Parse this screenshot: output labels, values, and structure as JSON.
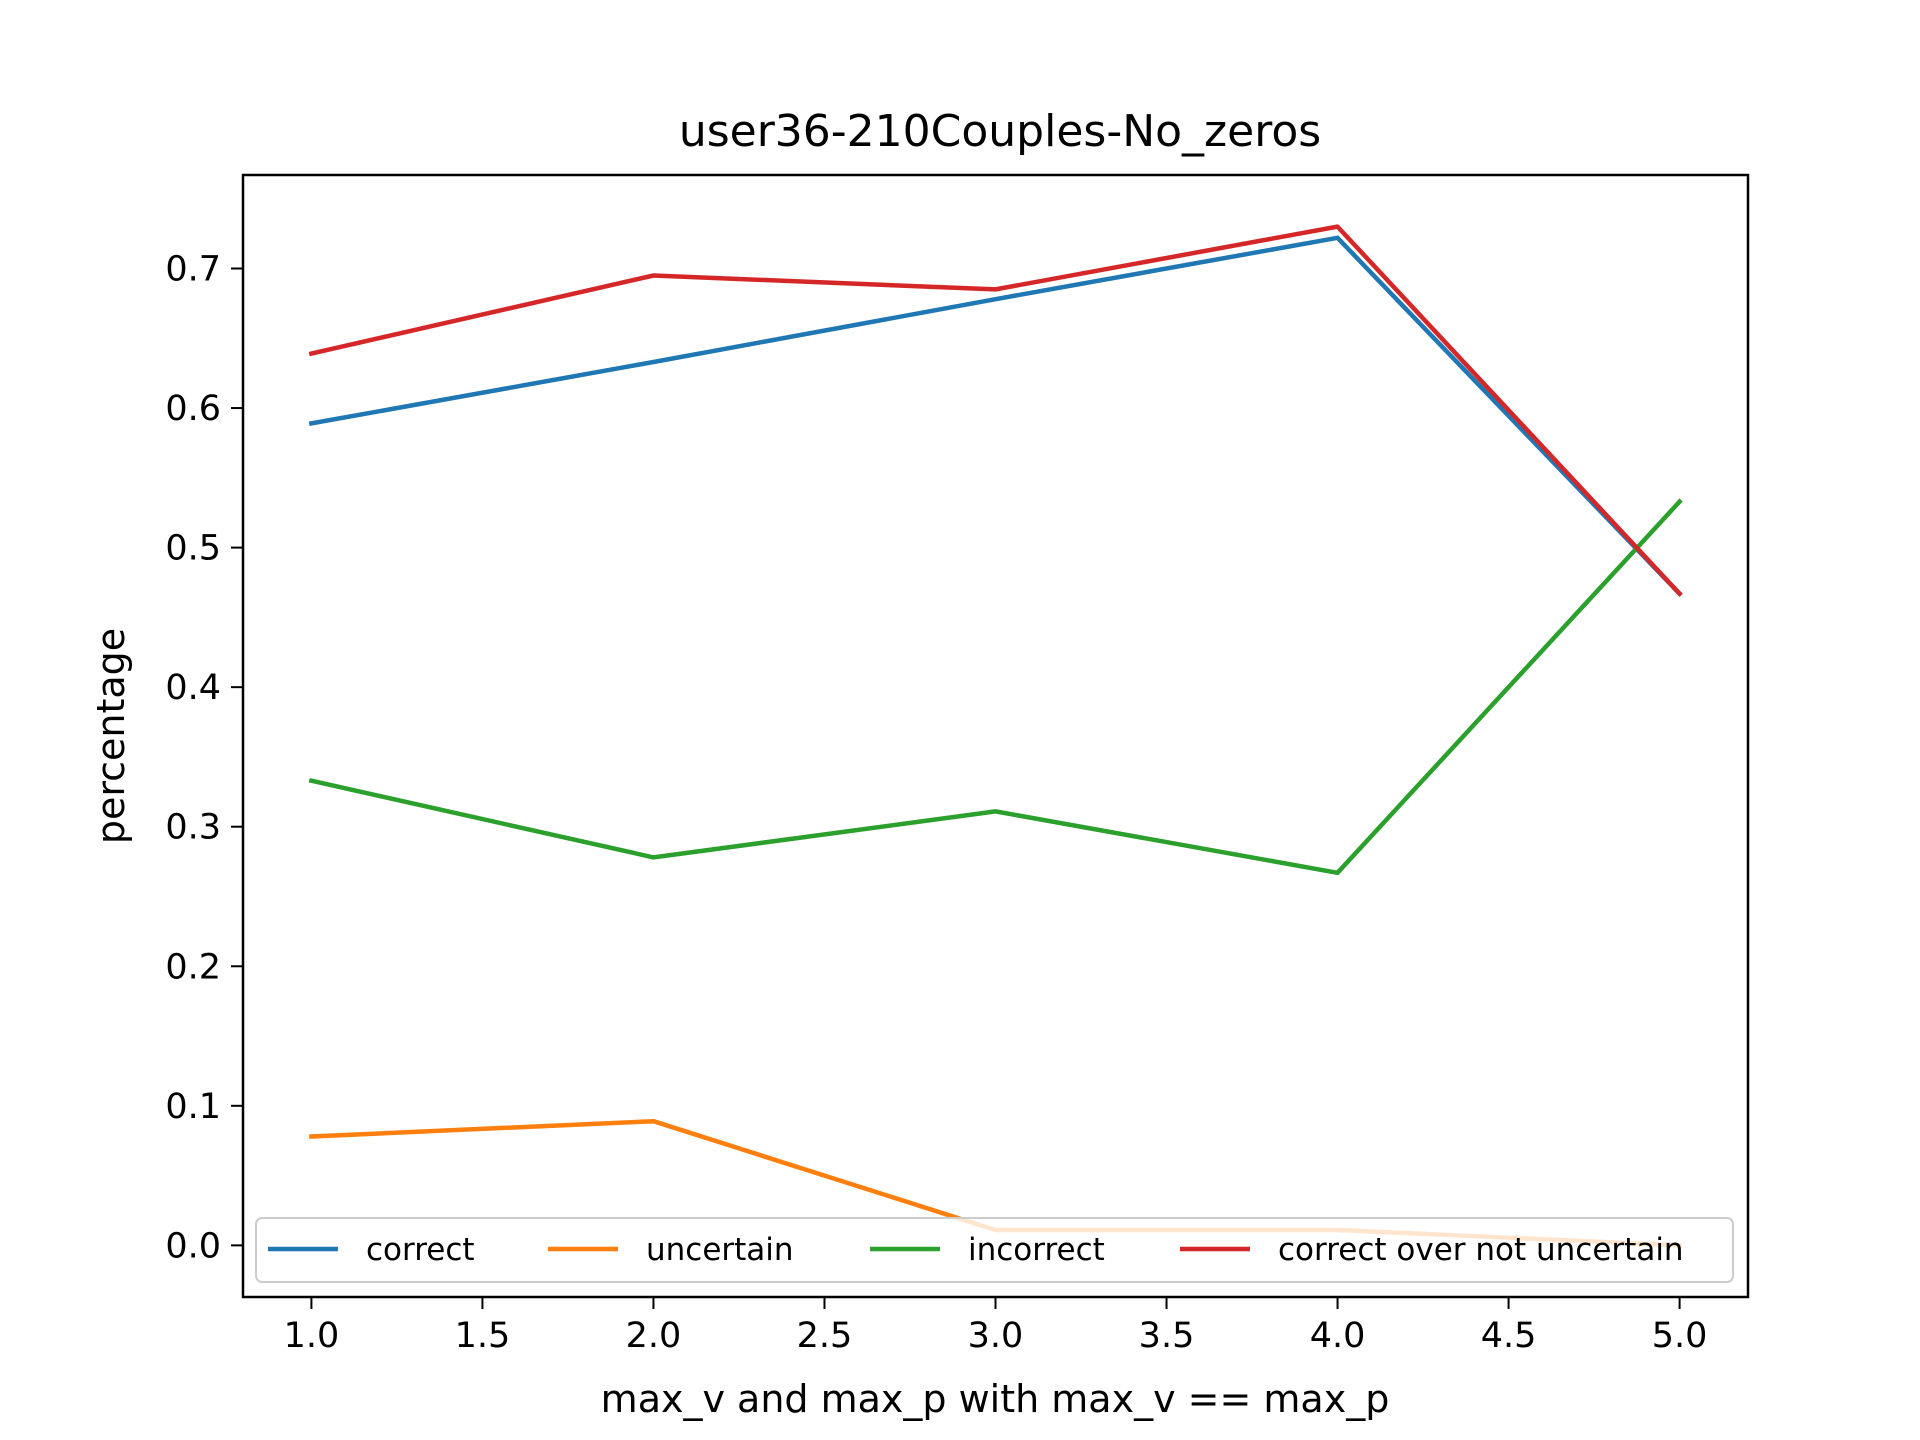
{
  "chart_data": {
    "type": "line",
    "title": "user36-210Couples-No_zeros",
    "xlabel": "max_v and max_p with max_v == max_p",
    "ylabel": "percentage",
    "x": [
      1.0,
      2.0,
      3.0,
      4.0,
      5.0
    ],
    "xlim": [
      0.8,
      5.2
    ],
    "ylim": [
      -0.037,
      0.767
    ],
    "xticks": [
      "1.0",
      "1.5",
      "2.0",
      "2.5",
      "3.0",
      "3.5",
      "4.0",
      "4.5",
      "5.0"
    ],
    "yticks": [
      "0.0",
      "0.1",
      "0.2",
      "0.3",
      "0.4",
      "0.5",
      "0.6",
      "0.7"
    ],
    "grid": false,
    "legend_position": "lower-center",
    "series": [
      {
        "name": "correct",
        "color": "#1f77b4",
        "values": [
          0.589,
          0.633,
          0.678,
          0.722,
          0.467
        ]
      },
      {
        "name": "uncertain",
        "color": "#ff7f0e",
        "values": [
          0.078,
          0.089,
          0.011,
          0.011,
          0.0
        ]
      },
      {
        "name": "incorrect",
        "color": "#2ca02c",
        "values": [
          0.333,
          0.278,
          0.311,
          0.267,
          0.533
        ]
      },
      {
        "name": "correct over not uncertain",
        "color": "#d62728",
        "values": [
          0.639,
          0.695,
          0.685,
          0.73,
          0.467
        ]
      }
    ]
  }
}
